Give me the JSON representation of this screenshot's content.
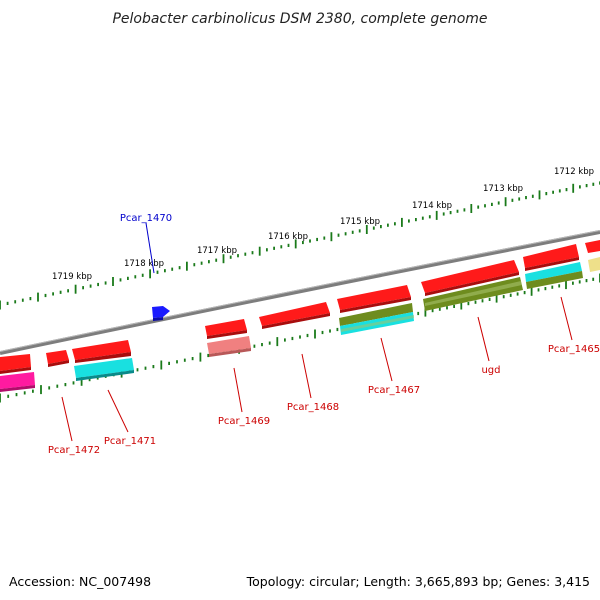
{
  "title": "Pelobacter carbinolicus DSM 2380, complete genome",
  "footer": {
    "accession": "Accession: NC_007498",
    "summary": "Topology: circular; Length: 3,665,893 bp; Genes: 3,415"
  },
  "colors": {
    "backbone": "#7d7d7d",
    "tick": "#1a7a1a",
    "label_red": "#cc0000",
    "label_blue": "#0000cc",
    "red": "#ff1a1a",
    "cyan": "#19e0e0",
    "olive": "#6e8c1e",
    "magenta": "#ff1aa0",
    "salmon": "#f08080",
    "blue": "#1a1aff",
    "khaki": "#eee08a"
  },
  "kbp_labels": [
    "1719 kbp",
    "1718 kbp",
    "1717 kbp",
    "1716 kbp",
    "1715 kbp",
    "1714 kbp",
    "1713 kbp",
    "1712 kbp"
  ],
  "gene_labels": [
    {
      "name": "Pcar_1470",
      "color": "blue"
    },
    {
      "name": "Pcar_1472",
      "color": "red"
    },
    {
      "name": "Pcar_1471",
      "color": "red"
    },
    {
      "name": "Pcar_1469",
      "color": "red"
    },
    {
      "name": "Pcar_1468",
      "color": "red"
    },
    {
      "name": "Pcar_1467",
      "color": "red"
    },
    {
      "name": "ugd",
      "color": "red"
    },
    {
      "name": "Pcar_1465",
      "color": "red"
    }
  ]
}
